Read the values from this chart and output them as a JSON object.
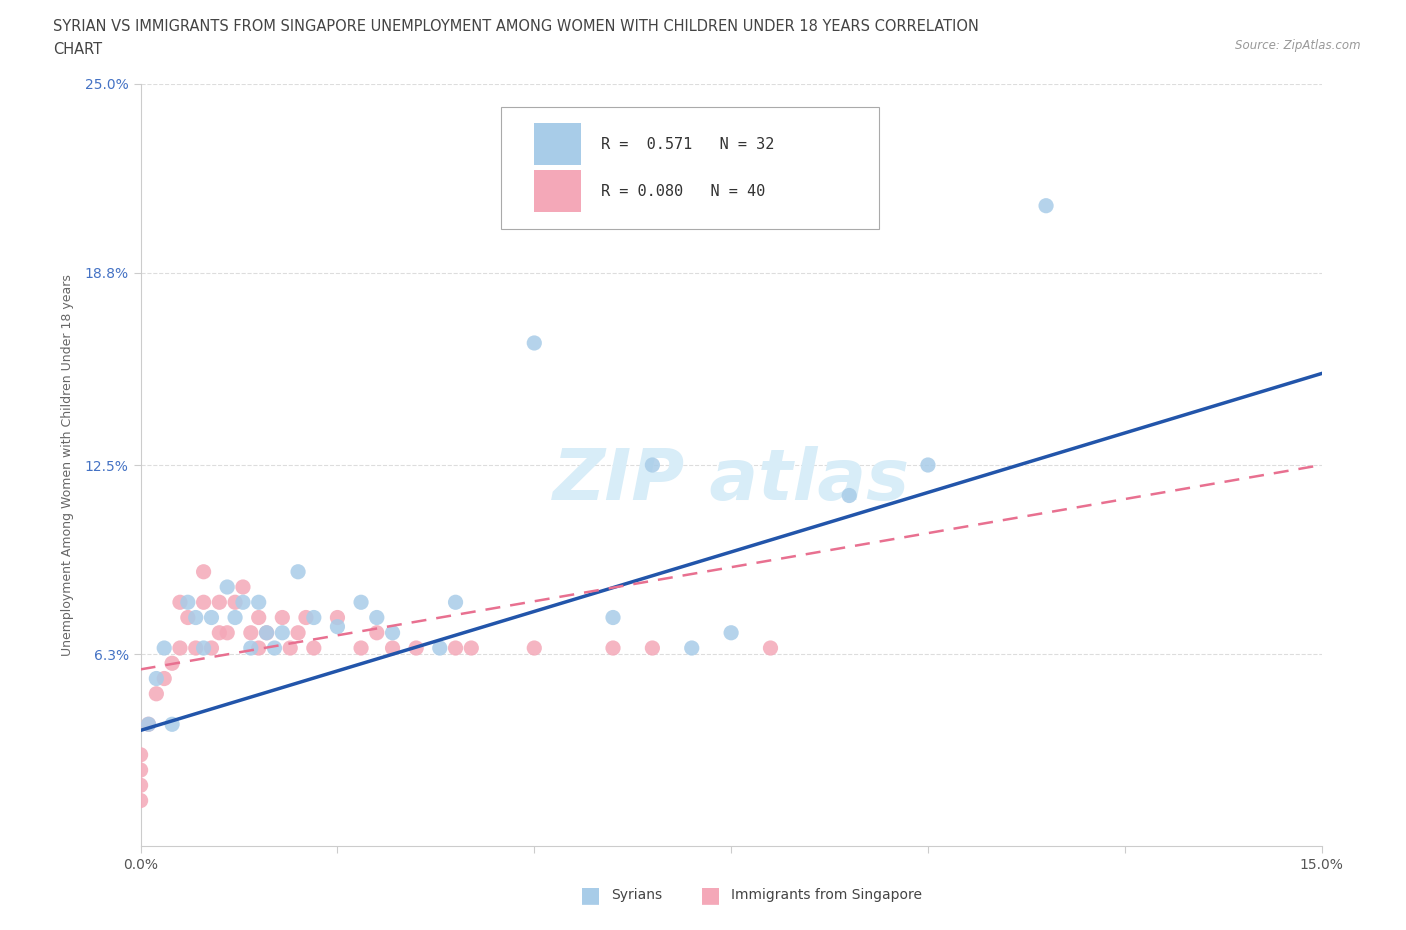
{
  "title_line1": "SYRIAN VS IMMIGRANTS FROM SINGAPORE UNEMPLOYMENT AMONG WOMEN WITH CHILDREN UNDER 18 YEARS CORRELATION",
  "title_line2": "CHART",
  "source_text": "Source: ZipAtlas.com",
  "ylabel": "Unemployment Among Women with Children Under 18 years",
  "xlim": [
    0.0,
    0.15
  ],
  "ylim": [
    0.0,
    0.25
  ],
  "ytick_vals": [
    0.063,
    0.125,
    0.188,
    0.25
  ],
  "ytick_labels": [
    "6.3%",
    "12.5%",
    "18.8%",
    "25.0%"
  ],
  "xticks": [
    0.0,
    0.025,
    0.05,
    0.075,
    0.1,
    0.125,
    0.15
  ],
  "xtick_labels": [
    "0.0%",
    "",
    "",
    "",
    "",
    "",
    "15.0%"
  ],
  "r_syrian": 0.571,
  "n_syrian": 32,
  "r_singapore": 0.08,
  "n_singapore": 40,
  "syrian_color": "#a8cce8",
  "singapore_color": "#f4a8b8",
  "trend_syrian_color": "#2255aa",
  "trend_singapore_color": "#e87090",
  "watermark_color": "#d8edf8",
  "background_color": "#ffffff",
  "grid_color": "#dddddd",
  "syrians_x": [
    0.001,
    0.002,
    0.003,
    0.004,
    0.006,
    0.007,
    0.008,
    0.009,
    0.011,
    0.012,
    0.013,
    0.014,
    0.015,
    0.016,
    0.017,
    0.018,
    0.02,
    0.022,
    0.025,
    0.028,
    0.03,
    0.032,
    0.038,
    0.04,
    0.05,
    0.06,
    0.065,
    0.07,
    0.075,
    0.09,
    0.1,
    0.115
  ],
  "syrians_y": [
    0.04,
    0.055,
    0.065,
    0.04,
    0.08,
    0.075,
    0.065,
    0.075,
    0.085,
    0.075,
    0.08,
    0.065,
    0.08,
    0.07,
    0.065,
    0.07,
    0.09,
    0.075,
    0.072,
    0.08,
    0.075,
    0.07,
    0.065,
    0.08,
    0.165,
    0.075,
    0.125,
    0.065,
    0.07,
    0.115,
    0.125,
    0.21
  ],
  "singapore_x": [
    0.0,
    0.0,
    0.0,
    0.0,
    0.001,
    0.002,
    0.003,
    0.004,
    0.005,
    0.005,
    0.006,
    0.007,
    0.008,
    0.008,
    0.009,
    0.01,
    0.01,
    0.011,
    0.012,
    0.013,
    0.014,
    0.015,
    0.015,
    0.016,
    0.018,
    0.019,
    0.02,
    0.021,
    0.022,
    0.025,
    0.028,
    0.03,
    0.032,
    0.035,
    0.04,
    0.042,
    0.05,
    0.06,
    0.065,
    0.08
  ],
  "singapore_y": [
    0.015,
    0.02,
    0.025,
    0.03,
    0.04,
    0.05,
    0.055,
    0.06,
    0.065,
    0.08,
    0.075,
    0.065,
    0.08,
    0.09,
    0.065,
    0.07,
    0.08,
    0.07,
    0.08,
    0.085,
    0.07,
    0.075,
    0.065,
    0.07,
    0.075,
    0.065,
    0.07,
    0.075,
    0.065,
    0.075,
    0.065,
    0.07,
    0.065,
    0.065,
    0.065,
    0.065,
    0.065,
    0.065,
    0.065,
    0.065
  ],
  "trend_syrian_x0": 0.0,
  "trend_syrian_y0": 0.038,
  "trend_syrian_x1": 0.15,
  "trend_syrian_y1": 0.155,
  "trend_sing_x0": 0.0,
  "trend_sing_y0": 0.058,
  "trend_sing_x1": 0.15,
  "trend_sing_y1": 0.125
}
